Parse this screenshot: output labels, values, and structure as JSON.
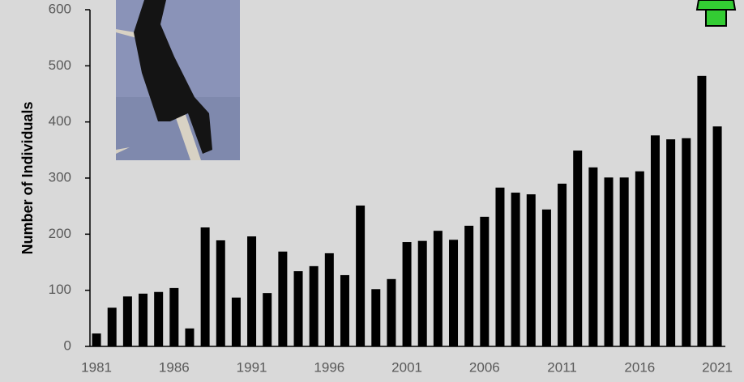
{
  "chart_data": {
    "type": "bar",
    "y_label": "Number of Individuals",
    "categories": [
      "1981",
      null,
      null,
      null,
      null,
      "1986",
      null,
      null,
      null,
      null,
      "1991",
      null,
      null,
      null,
      null,
      "1996",
      null,
      null,
      null,
      null,
      "2001",
      null,
      null,
      null,
      null,
      "2006",
      null,
      null,
      null,
      null,
      "2011",
      null,
      null,
      null,
      null,
      "2016",
      null,
      null,
      null,
      null,
      "2021"
    ],
    "values": [
      23,
      69,
      89,
      94,
      97,
      104,
      32,
      212,
      189,
      87,
      196,
      95,
      169,
      134,
      143,
      166,
      127,
      251,
      102,
      120,
      186,
      188,
      206,
      190,
      215,
      231,
      283,
      274,
      271,
      244,
      290,
      349,
      319,
      301,
      301,
      312,
      376,
      369,
      371,
      482,
      392
    ],
    "color": "#000000",
    "ylim": [
      0,
      600
    ],
    "yticks": [
      0,
      100,
      200,
      300,
      400,
      500,
      600
    ]
  }
}
